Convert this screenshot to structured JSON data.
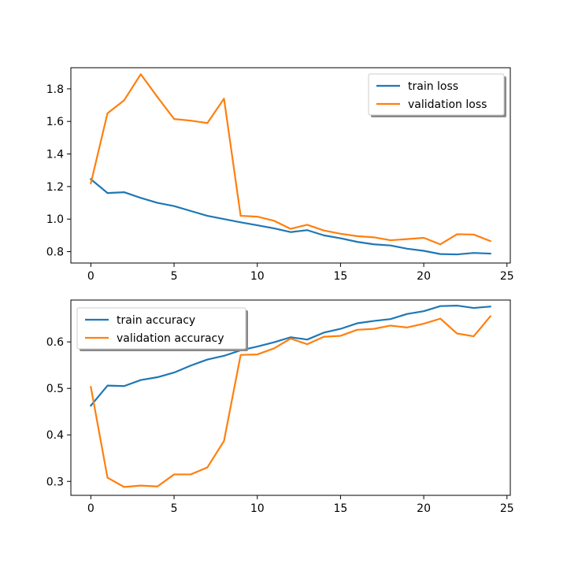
{
  "chart_data": [
    {
      "type": "line",
      "x": [
        0,
        1,
        2,
        3,
        4,
        5,
        6,
        7,
        8,
        9,
        10,
        11,
        12,
        13,
        14,
        15,
        16,
        17,
        18,
        19,
        20,
        21,
        22,
        23,
        24
      ],
      "xlim": [
        -1.2,
        25.2
      ],
      "ylim": [
        0.73,
        1.93
      ],
      "xticks": [
        0,
        5,
        10,
        15,
        20,
        25
      ],
      "yticks": [
        0.8,
        1.0,
        1.2,
        1.4,
        1.6,
        1.8
      ],
      "ytick_decimals": 1,
      "legend_position": "top-right",
      "series": [
        {
          "name": "train loss",
          "color": "#1f77b4",
          "values": [
            1.245,
            1.16,
            1.165,
            1.13,
            1.1,
            1.08,
            1.05,
            1.02,
            1.0,
            0.98,
            0.962,
            0.943,
            0.92,
            0.932,
            0.9,
            0.882,
            0.86,
            0.845,
            0.838,
            0.818,
            0.805,
            0.785,
            0.783,
            0.792,
            0.788
          ]
        },
        {
          "name": "validation loss",
          "color": "#ff7f0e",
          "values": [
            1.22,
            1.65,
            1.73,
            1.89,
            1.75,
            1.615,
            1.605,
            1.59,
            1.74,
            1.02,
            1.015,
            0.99,
            0.94,
            0.965,
            0.93,
            0.91,
            0.895,
            0.888,
            0.87,
            0.877,
            0.885,
            0.845,
            0.907,
            0.905,
            0.865
          ]
        }
      ]
    },
    {
      "type": "line",
      "x": [
        0,
        1,
        2,
        3,
        4,
        5,
        6,
        7,
        8,
        9,
        10,
        11,
        12,
        13,
        14,
        15,
        16,
        17,
        18,
        19,
        20,
        21,
        22,
        23,
        24
      ],
      "xlim": [
        -1.2,
        25.2
      ],
      "ylim": [
        0.27,
        0.69
      ],
      "xticks": [
        0,
        5,
        10,
        15,
        20,
        25
      ],
      "yticks": [
        0.3,
        0.4,
        0.5,
        0.6
      ],
      "ytick_decimals": 1,
      "legend_position": "top-left",
      "series": [
        {
          "name": "train accuracy",
          "color": "#1f77b4",
          "values": [
            0.463,
            0.506,
            0.505,
            0.518,
            0.524,
            0.534,
            0.549,
            0.562,
            0.57,
            0.582,
            0.59,
            0.599,
            0.61,
            0.605,
            0.62,
            0.628,
            0.64,
            0.645,
            0.649,
            0.66,
            0.666,
            0.677,
            0.678,
            0.673,
            0.676
          ]
        },
        {
          "name": "validation accuracy",
          "color": "#ff7f0e",
          "values": [
            0.503,
            0.308,
            0.288,
            0.291,
            0.289,
            0.315,
            0.315,
            0.33,
            0.387,
            0.572,
            0.573,
            0.586,
            0.607,
            0.595,
            0.611,
            0.613,
            0.626,
            0.628,
            0.635,
            0.631,
            0.639,
            0.65,
            0.618,
            0.612,
            0.655
          ]
        }
      ]
    }
  ]
}
